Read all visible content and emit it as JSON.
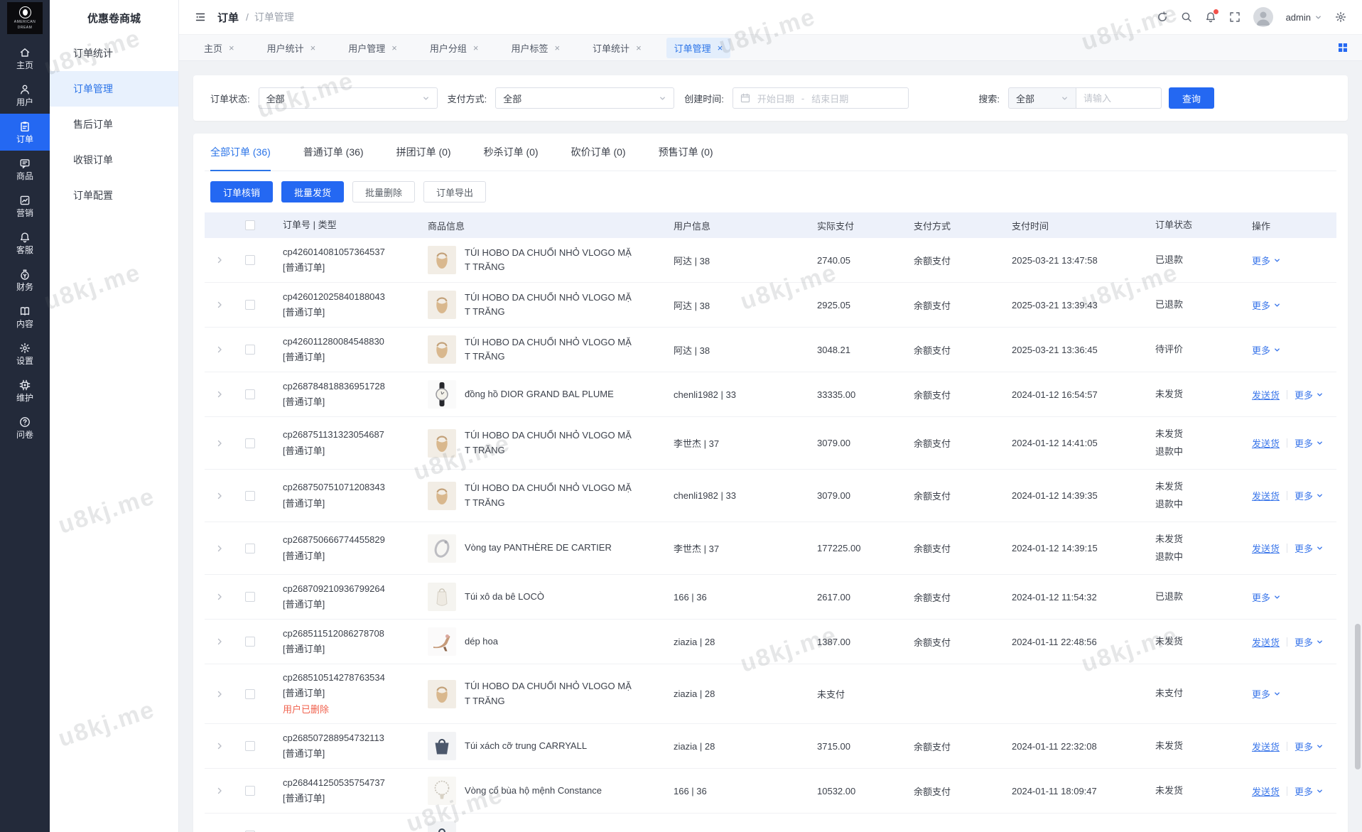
{
  "brand": {
    "logo_line1": "AMERICAN",
    "logo_line2": "DREAM",
    "store_name": "优惠卷商城"
  },
  "rail": {
    "items": [
      {
        "icon": "home",
        "label": "主页",
        "active": false
      },
      {
        "icon": "user",
        "label": "用户",
        "active": false
      },
      {
        "icon": "order",
        "label": "订单",
        "active": true
      },
      {
        "icon": "goods",
        "label": "商品",
        "active": false
      },
      {
        "icon": "marketing",
        "label": "营销",
        "active": false
      },
      {
        "icon": "service",
        "label": "客服",
        "active": false
      },
      {
        "icon": "finance",
        "label": "财务",
        "active": false
      },
      {
        "icon": "content",
        "label": "内容",
        "active": false
      },
      {
        "icon": "settings",
        "label": "设置",
        "active": false
      },
      {
        "icon": "maintain",
        "label": "维护",
        "active": false
      },
      {
        "icon": "survey",
        "label": "问卷",
        "active": false
      }
    ]
  },
  "subnav": {
    "items": [
      {
        "label": "订单统计",
        "active": false
      },
      {
        "label": "订单管理",
        "active": true
      },
      {
        "label": "售后订单",
        "active": false
      },
      {
        "label": "收银订单",
        "active": false
      },
      {
        "label": "订单配置",
        "active": false
      }
    ]
  },
  "header": {
    "breadcrumb_root": "订单",
    "breadcrumb_sep": "/",
    "breadcrumb_current": "订单管理",
    "username": "admin"
  },
  "workspace_tabs": [
    {
      "label": "主页",
      "active": false
    },
    {
      "label": "用户统计",
      "active": false
    },
    {
      "label": "用户管理",
      "active": false
    },
    {
      "label": "用户分组",
      "active": false
    },
    {
      "label": "用户标签",
      "active": false
    },
    {
      "label": "订单统计",
      "active": false
    },
    {
      "label": "订单管理",
      "active": true
    }
  ],
  "filters": {
    "order_status_label": "订单状态:",
    "order_status_value": "全部",
    "pay_method_label": "支付方式:",
    "pay_method_value": "全部",
    "create_time_label": "创建时间:",
    "start_date_placeholder": "开始日期",
    "date_separator": "-",
    "end_date_placeholder": "结束日期",
    "search_label": "搜索:",
    "search_type_value": "全部",
    "search_placeholder": "请输入",
    "query_button": "查询"
  },
  "order_tabs": [
    {
      "label": "全部订单 (36)",
      "active": true
    },
    {
      "label": "普通订单 (36)",
      "active": false
    },
    {
      "label": "拼团订单 (0)",
      "active": false
    },
    {
      "label": "秒杀订单 (0)",
      "active": false
    },
    {
      "label": "砍价订单 (0)",
      "active": false
    },
    {
      "label": "预售订单 (0)",
      "active": false
    }
  ],
  "toolbar": [
    {
      "label": "订单核销",
      "style": "primary"
    },
    {
      "label": "批量发货",
      "style": "primary"
    },
    {
      "label": "批量删除",
      "style": "default"
    },
    {
      "label": "订单导出",
      "style": "default"
    }
  ],
  "table": {
    "columns": [
      "订单号 | 类型",
      "商品信息",
      "用户信息",
      "实际支付",
      "支付方式",
      "支付时间",
      "订单状态",
      "操作"
    ],
    "rows": [
      {
        "order_no": "cp426014081057364537",
        "order_type": "[普通订单]",
        "product": "TÚI HOBO DA CHUỔI NHỎ VLOGO MẶT TRĂNG",
        "product_icon": "hobo-bag",
        "user": "阿达 | 38",
        "paid": "2740.05",
        "pay_method": "余额支付",
        "pay_time": "2025-03-21 13:47:58",
        "statuses": [
          "已退款"
        ],
        "actions": [
          "更多"
        ]
      },
      {
        "order_no": "cp426012025840188043",
        "order_type": "[普通订单]",
        "product": "TÚI HOBO DA CHUỔI NHỎ VLOGO MẶT TRĂNG",
        "product_icon": "hobo-bag",
        "user": "阿达 | 38",
        "paid": "2925.05",
        "pay_method": "余额支付",
        "pay_time": "2025-03-21 13:39:43",
        "statuses": [
          "已退款"
        ],
        "actions": [
          "更多"
        ]
      },
      {
        "order_no": "cp426011280084548830",
        "order_type": "[普通订单]",
        "product": "TÚI HOBO DA CHUỔI NHỎ VLOGO MẶT TRĂNG",
        "product_icon": "hobo-bag",
        "user": "阿达 | 38",
        "paid": "3048.21",
        "pay_method": "余额支付",
        "pay_time": "2025-03-21 13:36:45",
        "statuses": [
          "待评价"
        ],
        "actions": [
          "更多"
        ]
      },
      {
        "order_no": "cp268784818836951728",
        "order_type": "[普通订单]",
        "product": "đồng hồ DIOR GRAND BAL PLUME",
        "product_icon": "watch",
        "user": "chenli1982 | 33",
        "paid": "33335.00",
        "pay_method": "余额支付",
        "pay_time": "2024-01-12 16:54:57",
        "statuses": [
          "未发货"
        ],
        "actions": [
          "发送货",
          "更多"
        ]
      },
      {
        "order_no": "cp268751131323054687",
        "order_type": "[普通订单]",
        "product": "TÚI HOBO DA CHUỔI NHỎ VLOGO MẶT TRĂNG",
        "product_icon": "hobo-bag",
        "user": "李世杰 | 37",
        "paid": "3079.00",
        "pay_method": "余额支付",
        "pay_time": "2024-01-12 14:41:05",
        "statuses": [
          "未发货",
          "退款中"
        ],
        "actions": [
          "发送货",
          "更多"
        ]
      },
      {
        "order_no": "cp268750751071208343",
        "order_type": "[普通订单]",
        "product": "TÚI HOBO DA CHUỔI NHỎ VLOGO MẶT TRĂNG",
        "product_icon": "hobo-bag",
        "user": "chenli1982 | 33",
        "paid": "3079.00",
        "pay_method": "余额支付",
        "pay_time": "2024-01-12 14:39:35",
        "statuses": [
          "未发货",
          "退款中"
        ],
        "actions": [
          "发送货",
          "更多"
        ]
      },
      {
        "order_no": "cp268750666774455829",
        "order_type": "[普通订单]",
        "product": "Vòng tay PANTHÈRE DE CARTIER",
        "product_icon": "bracelet",
        "user": "李世杰 | 37",
        "paid": "177225.00",
        "pay_method": "余额支付",
        "pay_time": "2024-01-12 14:39:15",
        "statuses": [
          "未发货",
          "退款中"
        ],
        "actions": [
          "发送货",
          "更多"
        ]
      },
      {
        "order_no": "cp268709210936799264",
        "order_type": "[普通订单]",
        "product": "Túi xô da bê LOCÒ",
        "product_icon": "bucket-bag",
        "user": "166 | 36",
        "paid": "2617.00",
        "pay_method": "余额支付",
        "pay_time": "2024-01-12 11:54:32",
        "statuses": [
          "已退款"
        ],
        "actions": [
          "更多"
        ]
      },
      {
        "order_no": "cp268511512086278708",
        "order_type": "[普通订单]",
        "product": "dép hoa",
        "product_icon": "heel-shoe",
        "user": "ziazia | 28",
        "paid": "1387.00",
        "pay_method": "余额支付",
        "pay_time": "2024-01-11 22:48:56",
        "statuses": [
          "未发货"
        ],
        "actions": [
          "发送货",
          "更多"
        ]
      },
      {
        "order_no": "cp268510514278763534",
        "order_type": "[普通订单]",
        "note": "用户已删除",
        "product": "TÚI HOBO DA CHUỔI NHỎ VLOGO MẶT TRĂNG",
        "product_icon": "hobo-bag",
        "user": "ziazia | 28",
        "paid": "未支付",
        "pay_method": "",
        "pay_time": "",
        "statuses": [
          "未支付"
        ],
        "actions": [
          "更多"
        ]
      },
      {
        "order_no": "cp268507288954732113",
        "order_type": "[普通订单]",
        "product": "Túi xách cỡ trung CARRYALL",
        "product_icon": "tote",
        "user": "ziazia | 28",
        "paid": "3715.00",
        "pay_method": "余额支付",
        "pay_time": "2024-01-11 22:32:08",
        "statuses": [
          "未发货"
        ],
        "actions": [
          "发送货",
          "更多"
        ]
      },
      {
        "order_no": "cp268441250535754737",
        "order_type": "[普通订单]",
        "product": "Vòng cổ bùa hộ mệnh Constance",
        "product_icon": "necklace",
        "user": "166 | 36",
        "paid": "10532.00",
        "pay_method": "余额支付",
        "pay_time": "2024-01-11 18:09:47",
        "statuses": [
          "未发货"
        ],
        "actions": [
          "发送货",
          "更多"
        ]
      },
      {
        "partial": true,
        "order_no": "",
        "order_type": "",
        "product": "",
        "product_icon": "tote",
        "user": "",
        "paid": "",
        "pay_method": "",
        "pay_time": "",
        "statuses": [],
        "actions": []
      }
    ]
  },
  "watermark": {
    "text": "u8kj.me"
  }
}
